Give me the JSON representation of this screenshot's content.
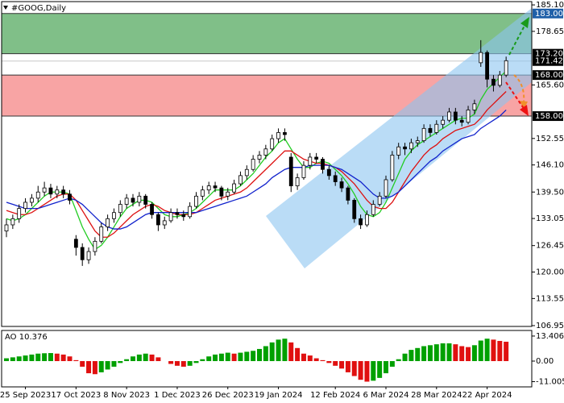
{
  "chart_data": {
    "type": "candlestick",
    "title": "#GOOG,Daily",
    "categories": [
      null,
      null,
      null,
      "25 Sep 2023",
      null,
      null,
      null,
      null,
      null,
      null,
      null,
      "17 Oct 2023",
      null,
      null,
      null,
      null,
      null,
      null,
      null,
      "8 Nov 2023",
      null,
      null,
      null,
      null,
      null,
      null,
      null,
      "1 Dec 2023",
      null,
      null,
      null,
      null,
      null,
      null,
      null,
      "26 Dec 2023",
      null,
      null,
      null,
      null,
      null,
      null,
      null,
      "19 Jan 2024",
      null,
      null,
      null,
      null,
      null,
      null,
      null,
      null,
      "12 Feb 2024",
      null,
      null,
      null,
      null,
      null,
      null,
      null,
      "6 Mar 2024",
      null,
      null,
      null,
      null,
      null,
      null,
      null,
      "28 Mar 2024",
      null,
      null,
      null,
      null,
      null,
      null,
      null,
      "22 Apr 2024",
      null,
      null,
      null
    ],
    "candles": [
      [
        130,
        133,
        128.5,
        131.5
      ],
      [
        131.5,
        134,
        130.5,
        133
      ],
      [
        133,
        136.5,
        132,
        135.5
      ],
      [
        135.5,
        138,
        134.5,
        137
      ],
      [
        137,
        139,
        136,
        138
      ],
      [
        138,
        141,
        137,
        139.5
      ],
      [
        139.5,
        142,
        138.5,
        140.5
      ],
      [
        140.5,
        141.5,
        138,
        139
      ],
      [
        139,
        141,
        138,
        140
      ],
      [
        140,
        141,
        138,
        139
      ],
      [
        139,
        140,
        136.5,
        137.5
      ],
      [
        128,
        129,
        124,
        126
      ],
      [
        126,
        127,
        121.5,
        123
      ],
      [
        123,
        126,
        122,
        125
      ],
      [
        125,
        128.5,
        124,
        127.5
      ],
      [
        127.5,
        132,
        127,
        131
      ],
      [
        131,
        134,
        130,
        133
      ],
      [
        133,
        135.5,
        132,
        134.5
      ],
      [
        134.5,
        137.5,
        133.5,
        136.5
      ],
      [
        136.5,
        139,
        135.5,
        138
      ],
      [
        138,
        139,
        136,
        137
      ],
      [
        137,
        139.5,
        136,
        138.5
      ],
      [
        138.5,
        139,
        135.5,
        136.5
      ],
      [
        136.5,
        137,
        133,
        134
      ],
      [
        134,
        134.5,
        130,
        131.5
      ],
      [
        131.5,
        133.5,
        130.5,
        132.5
      ],
      [
        132.5,
        135.5,
        132,
        134.5
      ],
      [
        134.5,
        135.5,
        133,
        134
      ],
      [
        134,
        135,
        132.5,
        133.5
      ],
      [
        133.5,
        137,
        133,
        136
      ],
      [
        136,
        139.5,
        135.5,
        138.5
      ],
      [
        138.5,
        141,
        137.5,
        140
      ],
      [
        140,
        142,
        139,
        141
      ],
      [
        141,
        142,
        139.5,
        140.5
      ],
      [
        140.5,
        141,
        137.5,
        138.5
      ],
      [
        138.5,
        140.5,
        137.5,
        139.5
      ],
      [
        139.5,
        142.5,
        139,
        141.5
      ],
      [
        141.5,
        144.5,
        141,
        143.5
      ],
      [
        143.5,
        146,
        142.5,
        145
      ],
      [
        145,
        148.5,
        144.5,
        147.5
      ],
      [
        147.5,
        149.5,
        146.5,
        148.5
      ],
      [
        148.5,
        151,
        147.5,
        150
      ],
      [
        150,
        153.5,
        149.5,
        152.5
      ],
      [
        152.5,
        155,
        151.5,
        154
      ],
      [
        154,
        155,
        152,
        153.5
      ],
      [
        148,
        149,
        139.5,
        141
      ],
      [
        141,
        144,
        140,
        143
      ],
      [
        143,
        147,
        142.5,
        146
      ],
      [
        146,
        149,
        145,
        148
      ],
      [
        148,
        149,
        146.5,
        147.5
      ],
      [
        147.5,
        148,
        144,
        145
      ],
      [
        145,
        146,
        142.5,
        143.5
      ],
      [
        143.5,
        144.5,
        141,
        142
      ],
      [
        142,
        143,
        139.5,
        140.5
      ],
      [
        140.5,
        141,
        136.5,
        137.5
      ],
      [
        137.5,
        138,
        132,
        133
      ],
      [
        133,
        134,
        130.5,
        131.5
      ],
      [
        131.5,
        135,
        131,
        134
      ],
      [
        134,
        137.5,
        133.5,
        136.5
      ],
      [
        136.5,
        139.5,
        136,
        138.5
      ],
      [
        138.5,
        143.5,
        138,
        142.5
      ],
      [
        142.5,
        149.5,
        142,
        148.5
      ],
      [
        148.5,
        151.5,
        147.5,
        150.5
      ],
      [
        150.5,
        151.5,
        148.5,
        150
      ],
      [
        150,
        152.5,
        149,
        151.5
      ],
      [
        151.5,
        153,
        150.5,
        152
      ],
      [
        152,
        156,
        151.5,
        155
      ],
      [
        155,
        156,
        153,
        154
      ],
      [
        154,
        157,
        153.5,
        156
      ],
      [
        156,
        158,
        155,
        157
      ],
      [
        157,
        160,
        156.5,
        159
      ],
      [
        159,
        160,
        156,
        157
      ],
      [
        157,
        158,
        155.5,
        156.5
      ],
      [
        156.5,
        160.5,
        156,
        159.5
      ],
      [
        159.5,
        162,
        158.5,
        161
      ],
      [
        171,
        176.5,
        170,
        173.5
      ],
      [
        173.5,
        174,
        165,
        167
      ],
      [
        167,
        168,
        164,
        165.5
      ],
      [
        165.5,
        169,
        165,
        168
      ],
      [
        168,
        172.5,
        167.5,
        171.5
      ]
    ],
    "up_color": "#ffffff",
    "down_color": "#000000",
    "ylim": [
      106.75,
      185.9
    ],
    "yticks": [
      {
        "value": 185.1,
        "label": "185.10"
      },
      {
        "value": 178.65,
        "label": "178.65"
      },
      {
        "value": 165.6,
        "label": "165.60"
      },
      {
        "value": 152.55,
        "label": "152.55"
      },
      {
        "value": 146.1,
        "label": "146.10"
      },
      {
        "value": 139.5,
        "label": "139.50"
      },
      {
        "value": 133.05,
        "label": "133.05"
      },
      {
        "value": 126.45,
        "label": "126.45"
      },
      {
        "value": 120,
        "label": "120.00"
      },
      {
        "value": 113.55,
        "label": "113.55"
      },
      {
        "value": 106.95,
        "label": "106.95"
      }
    ],
    "zones": [
      {
        "from": 173.2,
        "to": 183,
        "color": "#80bf88"
      },
      {
        "from": 158,
        "to": 168,
        "color": "#f8a4a4"
      }
    ],
    "levels": [
      {
        "value": 183,
        "label": "183.00",
        "color": "#1f5fa8",
        "line": "#333333"
      },
      {
        "value": 173.2,
        "label": "173.20",
        "color": "#000000",
        "line": "#333333"
      },
      {
        "value": 171.42,
        "label": "171.42",
        "color": "#000000",
        "line": "#c8c8c8"
      },
      {
        "value": 168,
        "label": "168.00",
        "color": "#000000",
        "line": "#333333"
      },
      {
        "value": 158,
        "label": "158.00",
        "color": "#000000",
        "line": "#333333"
      }
    ],
    "lines": [
      {
        "color": "#22cc22",
        "values": [
          133,
          132.5,
          133,
          134,
          135.5,
          137,
          138.5,
          139.5,
          139.5,
          139.5,
          139,
          135,
          131,
          128,
          125.5,
          126.5,
          128.5,
          131,
          133.5,
          135.5,
          136.5,
          137.5,
          137.5,
          137,
          135.5,
          134,
          133.5,
          133.5,
          134,
          134.5,
          135.5,
          137,
          138.5,
          140,
          140,
          140,
          140,
          141,
          142.5,
          144,
          146,
          148,
          149.5,
          151.5,
          152.5,
          150,
          147.5,
          145.5,
          145.5,
          146.5,
          147,
          146.5,
          145,
          143.5,
          141.5,
          139,
          136,
          134,
          133.5,
          134.5,
          137,
          140.5,
          144,
          147.5,
          149.5,
          151,
          152,
          153,
          154,
          155,
          156,
          157,
          157.5,
          157.5,
          158.5,
          162,
          164.5,
          166,
          167.5,
          169
        ]
      },
      {
        "color": "#dd1111",
        "values": [
          135,
          134.5,
          134,
          134,
          134.5,
          135.5,
          136.5,
          137.5,
          138.5,
          139,
          139,
          137.5,
          135,
          132.5,
          130,
          128.5,
          128.5,
          129.5,
          131,
          132.5,
          134,
          135,
          136,
          136.5,
          136,
          135,
          134.5,
          134,
          134,
          134,
          134.5,
          135.5,
          136.5,
          137.5,
          138,
          138.5,
          139,
          139.5,
          140.5,
          142,
          143.5,
          145,
          146.5,
          148,
          149.5,
          149.5,
          148.5,
          147.5,
          147,
          146.5,
          146.5,
          146,
          145.5,
          144.5,
          143,
          141.5,
          139.5,
          137.5,
          136,
          135.5,
          135.5,
          137,
          139.5,
          142,
          144.5,
          146.5,
          148.5,
          150,
          151,
          152.5,
          153.5,
          154.5,
          155,
          155.5,
          156,
          157.5,
          159.5,
          161,
          162.5,
          164
        ]
      },
      {
        "color": "#1122cc",
        "values": [
          137,
          136.5,
          136,
          135.5,
          135.5,
          135.5,
          136,
          136.5,
          137,
          137.5,
          138,
          137.5,
          136.5,
          135,
          133.5,
          132,
          131,
          130.5,
          130.5,
          131,
          132,
          133,
          134,
          134.5,
          134.5,
          134.5,
          134.5,
          134.5,
          134.5,
          134.5,
          134.5,
          135,
          135.5,
          136,
          136.5,
          137,
          137.5,
          138,
          138.5,
          139.5,
          140.5,
          141.5,
          143,
          144,
          145,
          145.5,
          145.5,
          145.5,
          146,
          146,
          146,
          146,
          145.5,
          145,
          144,
          143,
          142,
          140.5,
          139,
          138,
          138,
          138.5,
          139.5,
          141,
          142.5,
          144,
          145.5,
          147,
          148,
          149.5,
          150.5,
          151.5,
          152.5,
          153,
          153.5,
          155,
          156,
          157,
          158,
          159.5
        ]
      }
    ],
    "ao": {
      "label": "AO 10.376",
      "up_color": "#00a000",
      "down_color": "#e01010",
      "ylim": [
        -13.8,
        16.4
      ],
      "yticks": [
        13.406,
        {
          "value": 0,
          "label": "0.00"
        },
        -11.005
      ],
      "values": [
        1.5,
        2,
        2.5,
        3,
        3.5,
        4,
        4.2,
        4.3,
        4,
        3.5,
        2.5,
        0.5,
        -3,
        -6.5,
        -7,
        -6,
        -4.5,
        -3,
        -1,
        1,
        2.5,
        3.5,
        4,
        3.5,
        2,
        0,
        -1.5,
        -2.5,
        -3,
        -2.5,
        -1,
        1,
        2.5,
        3.5,
        4,
        4.5,
        4,
        4.5,
        5,
        5.5,
        6.5,
        8,
        10,
        11.5,
        12,
        10,
        7,
        4,
        3,
        1.5,
        0.5,
        -1,
        -2.5,
        -4,
        -6,
        -8,
        -10,
        -11,
        -10.5,
        -9,
        -6.5,
        -3,
        1,
        4,
        6,
        7,
        8,
        8.5,
        9,
        9.5,
        9.5,
        9,
        8,
        7.5,
        8.5,
        11,
        12,
        11.5,
        10.8,
        10.376
      ]
    }
  }
}
